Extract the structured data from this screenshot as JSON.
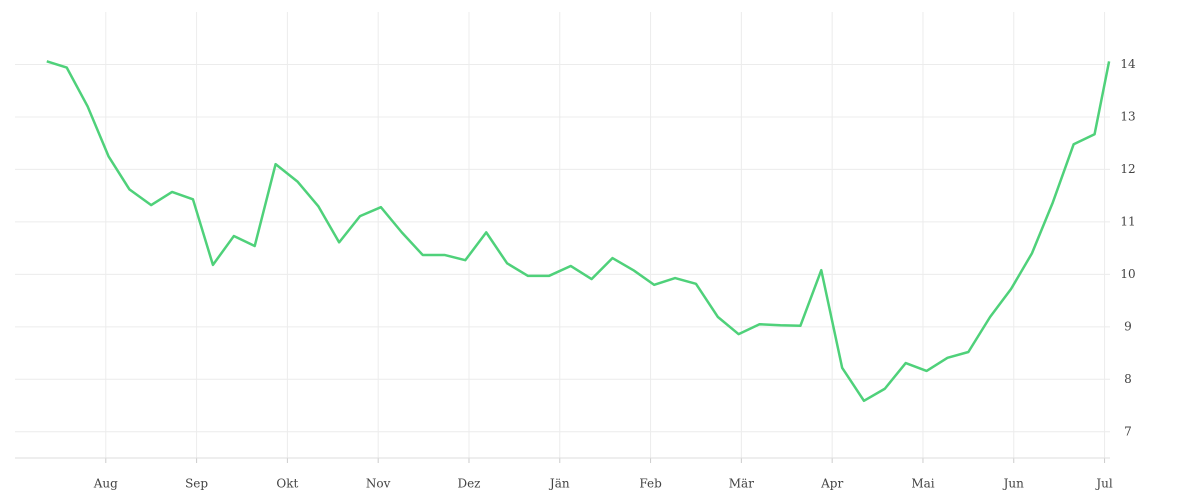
{
  "chart_data": {
    "type": "line",
    "x": [
      -0.65,
      -0.43,
      -0.2,
      0.03,
      0.26,
      0.5,
      0.73,
      0.96,
      1.18,
      1.41,
      1.64,
      1.87,
      2.11,
      2.34,
      2.57,
      2.8,
      3.03,
      3.26,
      3.49,
      3.73,
      3.96,
      4.19,
      4.42,
      4.65,
      4.88,
      5.12,
      5.35,
      5.58,
      5.81,
      6.04,
      6.27,
      6.5,
      6.74,
      6.97,
      7.2,
      7.43,
      7.65,
      7.88,
      8.11,
      8.35,
      8.58,
      8.81,
      9.04,
      9.27,
      9.5,
      9.74,
      9.97,
      10.2,
      10.43,
      10.66,
      10.89,
      11.05
    ],
    "series": [
      {
        "color": "#4fd17a",
        "values": [
          14.06,
          13.94,
          13.2,
          12.25,
          11.62,
          11.32,
          11.57,
          11.43,
          10.18,
          10.73,
          10.54,
          12.1,
          11.77,
          11.3,
          10.61,
          11.11,
          11.28,
          10.8,
          10.37,
          10.37,
          10.27,
          10.8,
          10.21,
          9.97,
          9.97,
          10.16,
          9.91,
          10.31,
          10.08,
          9.8,
          9.93,
          9.82,
          9.19,
          8.86,
          9.05,
          9.03,
          9.02,
          10.08,
          8.22,
          7.59,
          7.82,
          8.31,
          8.16,
          8.41,
          8.52,
          9.19,
          9.72,
          10.4,
          11.37,
          12.48,
          12.67,
          14.06
        ]
      }
    ],
    "xlim": [
      -1,
      11.06
    ],
    "xticks": [
      {
        "value": 0,
        "label": "Aug"
      },
      {
        "value": 1,
        "label": "Sep"
      },
      {
        "value": 2,
        "label": "Okt"
      },
      {
        "value": 3,
        "label": "Nov"
      },
      {
        "value": 4,
        "label": "Dez"
      },
      {
        "value": 5,
        "label": "Jän"
      },
      {
        "value": 6,
        "label": "Feb"
      },
      {
        "value": 7,
        "label": "Mär"
      },
      {
        "value": 8,
        "label": "Apr"
      },
      {
        "value": 9,
        "label": "Mai"
      },
      {
        "value": 10,
        "label": "Jun"
      },
      {
        "value": 11,
        "label": "Jul"
      }
    ],
    "ylim": [
      6.5,
      15
    ],
    "yticks": [
      7,
      8,
      9,
      10,
      11,
      12,
      13,
      14
    ],
    "grid": true
  }
}
